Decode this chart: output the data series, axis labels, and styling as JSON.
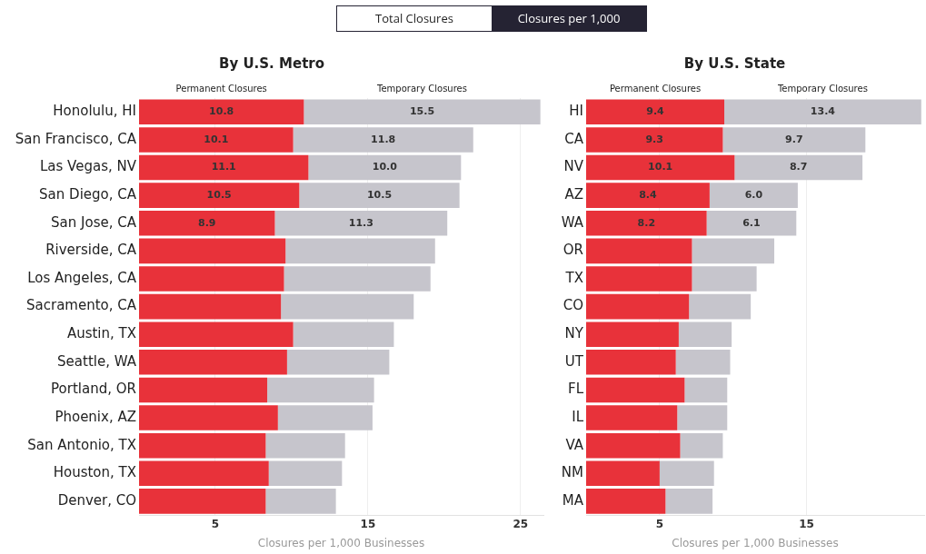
{
  "chart_data": [
    {
      "type": "bar",
      "orientation": "horizontal",
      "stacked": true,
      "title": "By U.S. Metro",
      "xlabel": "Closures per 1,000 Businesses",
      "annotations": [
        "Total Closures",
        "Closures per 1,000"
      ],
      "categories": [
        "Honolulu, HI",
        "San Francisco, CA",
        "Las Vegas, NV",
        "San Diego, CA",
        "San Jose, CA",
        "Riverside, CA",
        "Los Angeles, CA",
        "Sacramento, CA",
        "Austin, TX",
        "Seattle, WA",
        "Portland, OR",
        "Phoenix, AZ",
        "San Antonio, TX",
        "Houston, TX",
        "Denver, CO"
      ],
      "series": [
        {
          "name": "Permanent Closures",
          "color": "#e8323a",
          "values": [
            10.8,
            10.1,
            11.1,
            10.5,
            8.9,
            9.6,
            9.5,
            9.3,
            10.1,
            9.7,
            8.4,
            9.1,
            8.3,
            8.5,
            8.3
          ],
          "value_labels": [
            "10.8",
            "10.1",
            "11.1",
            "10.5",
            "8.9",
            null,
            null,
            null,
            null,
            null,
            null,
            null,
            null,
            null,
            null
          ]
        },
        {
          "name": "Temporary Closures",
          "color": "#c6c5cc",
          "values": [
            15.5,
            11.8,
            10.0,
            10.5,
            11.3,
            9.8,
            9.6,
            8.7,
            6.6,
            6.7,
            7.0,
            6.2,
            5.2,
            4.8,
            4.6
          ],
          "value_labels": [
            "15.5",
            "11.8",
            "10.0",
            "10.5",
            "11.3",
            null,
            null,
            null,
            null,
            null,
            null,
            null,
            null,
            null,
            null
          ]
        }
      ],
      "xlim": [
        0,
        26.5
      ],
      "xticks": [
        5,
        15,
        25
      ],
      "grid": "x",
      "legend": "top"
    },
    {
      "type": "bar",
      "orientation": "horizontal",
      "stacked": true,
      "title": "By U.S. State",
      "xlabel": "Closures per 1,000 Businesses",
      "categories": [
        "HI",
        "CA",
        "NV",
        "AZ",
        "WA",
        "OR",
        "TX",
        "CO",
        "NY",
        "UT",
        "FL",
        "IL",
        "VA",
        "NM",
        "MA"
      ],
      "series": [
        {
          "name": "Permanent Closures",
          "color": "#e8323a",
          "values": [
            9.4,
            9.3,
            10.1,
            8.4,
            8.2,
            7.2,
            7.2,
            7.0,
            6.3,
            6.1,
            6.7,
            6.2,
            6.4,
            5.0,
            5.4
          ],
          "value_labels": [
            "9.4",
            "9.3",
            "10.1",
            "8.4",
            "8.2",
            null,
            null,
            null,
            null,
            null,
            null,
            null,
            null,
            null,
            null
          ]
        },
        {
          "name": "Temporary Closures",
          "color": "#c6c5cc",
          "values": [
            13.4,
            9.7,
            8.7,
            6.0,
            6.1,
            5.6,
            4.4,
            4.2,
            3.6,
            3.7,
            2.9,
            3.4,
            2.9,
            3.7,
            3.2
          ],
          "value_labels": [
            "13.4",
            "9.7",
            "8.7",
            "6.0",
            "6.1",
            null,
            null,
            null,
            null,
            null,
            null,
            null,
            null,
            null,
            null
          ]
        }
      ],
      "xlim": [
        0,
        23
      ],
      "xticks": [
        5,
        15
      ],
      "grid": "x",
      "legend": "top"
    }
  ]
}
